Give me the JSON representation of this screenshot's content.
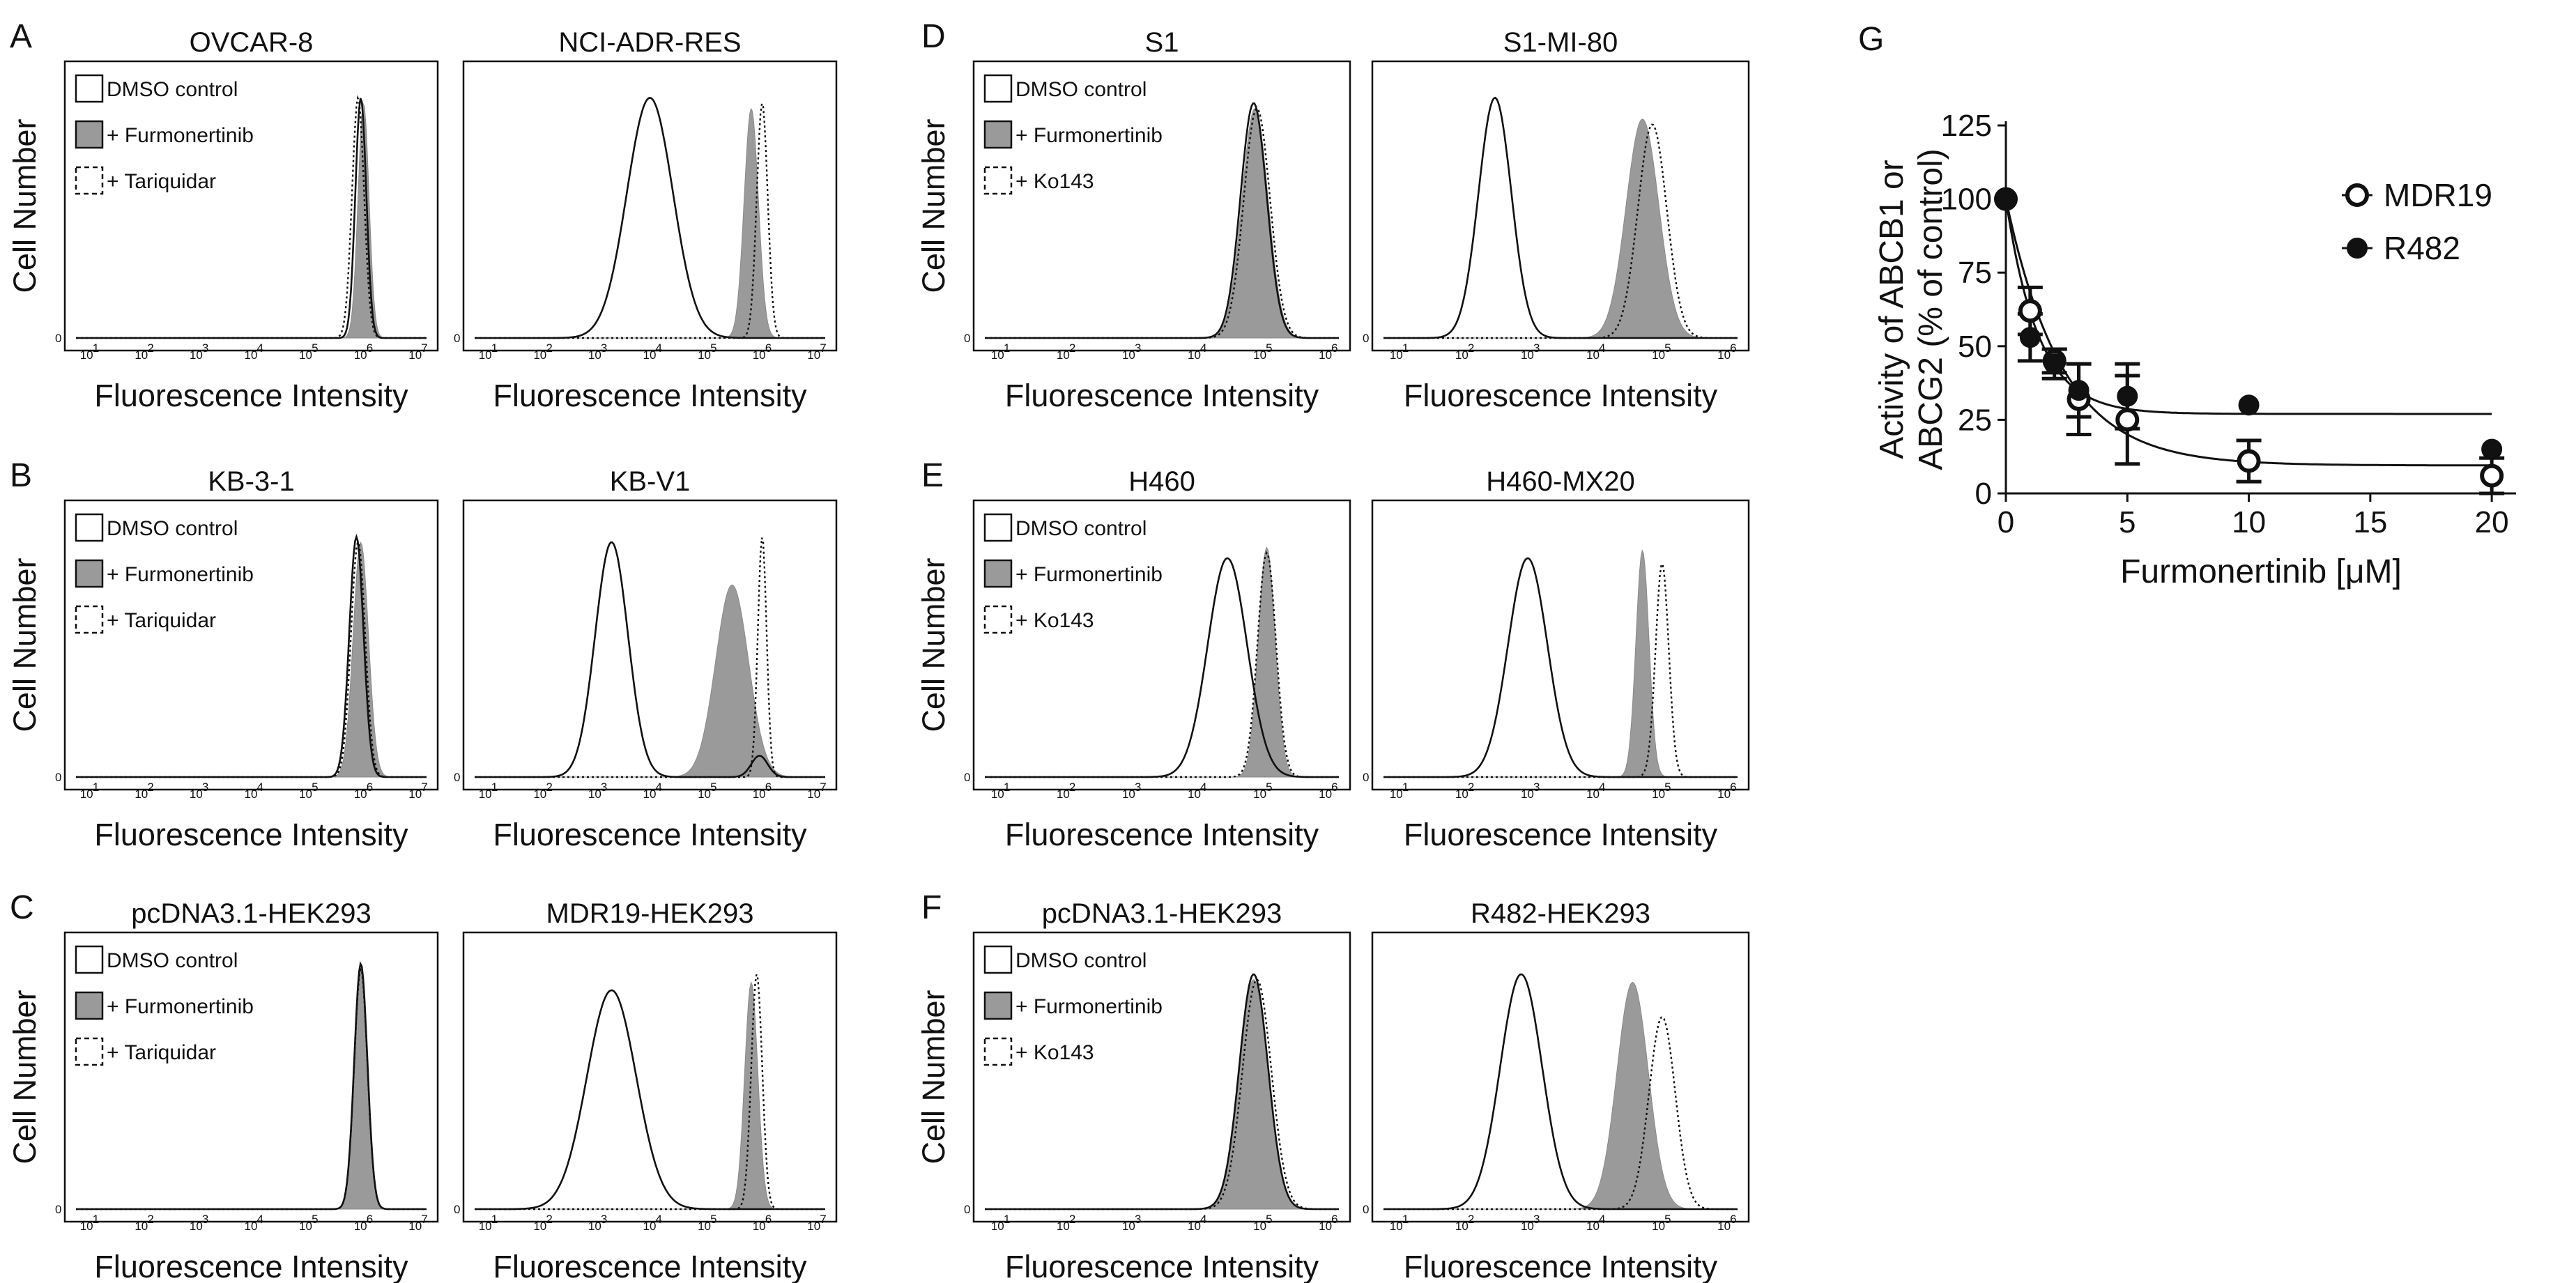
{
  "figure": {
    "letters": [
      "A",
      "B",
      "C",
      "D",
      "E",
      "F",
      "G"
    ]
  },
  "chart_data": [
    {
      "type": "line",
      "subtype": "histogram-overlay",
      "panel": "A",
      "titles": [
        "OVCAR-8",
        "NCI-ADR-RES"
      ],
      "xlabel": "Fluorescence Intensity",
      "ylabel": "Cell Number",
      "x_scale": "log10",
      "xlim": [
        0.8,
        7.2
      ],
      "x_tick_labels": [
        "10",
        "10",
        "10",
        "10",
        "10",
        "10",
        "10"
      ],
      "x_tick_exponents": [
        "1",
        "2",
        "3",
        "4",
        "5",
        "6",
        "7"
      ],
      "y_zero_label": "0",
      "legend": [
        "DMSO control",
        "+ Furmonertinib",
        "+ Tariquidar"
      ],
      "plots": [
        {
          "title": "OVCAR-8",
          "series": [
            {
              "name": "DMSO control",
              "style": "solid",
              "peaks": [
                {
                  "mu": 6.0,
                  "sigma": 0.1,
                  "h": 0.9
                }
              ]
            },
            {
              "name": "+ Furmonertinib",
              "style": "filled",
              "peaks": [
                {
                  "mu": 6.05,
                  "sigma": 0.1,
                  "h": 0.88
                }
              ]
            },
            {
              "name": "+ Tariquidar",
              "style": "dotted",
              "peaks": [
                {
                  "mu": 5.95,
                  "sigma": 0.11,
                  "h": 0.9
                }
              ]
            }
          ]
        },
        {
          "title": "NCI-ADR-RES",
          "series": [
            {
              "name": "DMSO control",
              "style": "solid",
              "peaks": [
                {
                  "mu": 4.0,
                  "sigma": 0.42,
                  "h": 0.9
                }
              ]
            },
            {
              "name": "+ Furmonertinib",
              "style": "filled",
              "peaks": [
                {
                  "mu": 5.85,
                  "sigma": 0.13,
                  "h": 0.86
                }
              ]
            },
            {
              "name": "+ Tariquidar",
              "style": "dotted",
              "peaks": [
                {
                  "mu": 6.05,
                  "sigma": 0.1,
                  "h": 0.88
                }
              ]
            }
          ]
        }
      ]
    },
    {
      "type": "line",
      "subtype": "histogram-overlay",
      "panel": "B",
      "titles": [
        "KB-3-1",
        "KB-V1"
      ],
      "xlabel": "Fluorescence Intensity",
      "ylabel": "Cell Number",
      "x_scale": "log10",
      "xlim": [
        0.8,
        7.2
      ],
      "x_tick_labels": [
        "10",
        "10",
        "10",
        "10",
        "10",
        "10",
        "10"
      ],
      "x_tick_exponents": [
        "1",
        "2",
        "3",
        "4",
        "5",
        "6",
        "7"
      ],
      "y_zero_label": "0",
      "legend": [
        "DMSO control",
        "+ Furmonertinib",
        "+ Tariquidar"
      ],
      "plots": [
        {
          "title": "KB-3-1",
          "series": [
            {
              "name": "DMSO control",
              "style": "solid",
              "peaks": [
                {
                  "mu": 5.92,
                  "sigma": 0.13,
                  "h": 0.9
                }
              ]
            },
            {
              "name": "+ Furmonertinib",
              "style": "filled",
              "peaks": [
                {
                  "mu": 6.0,
                  "sigma": 0.14,
                  "h": 0.88
                }
              ]
            },
            {
              "name": "+ Tariquidar",
              "style": "dotted",
              "peaks": [
                {
                  "mu": 5.95,
                  "sigma": 0.13,
                  "h": 0.88
                }
              ]
            }
          ]
        },
        {
          "title": "KB-V1",
          "series": [
            {
              "name": "DMSO control",
              "style": "solid",
              "peaks": [
                {
                  "mu": 3.3,
                  "sigma": 0.3,
                  "h": 0.88
                },
                {
                  "mu": 6.0,
                  "sigma": 0.15,
                  "h": 0.08
                }
              ]
            },
            {
              "name": "+ Furmonertinib",
              "style": "filled",
              "peaks": [
                {
                  "mu": 5.5,
                  "sigma": 0.3,
                  "h": 0.72
                }
              ]
            },
            {
              "name": "+ Tariquidar",
              "style": "dotted",
              "peaks": [
                {
                  "mu": 6.05,
                  "sigma": 0.08,
                  "h": 0.9
                }
              ]
            }
          ]
        }
      ]
    },
    {
      "type": "line",
      "subtype": "histogram-overlay",
      "panel": "C",
      "titles": [
        "pcDNA3.1-HEK293",
        "MDR19-HEK293"
      ],
      "xlabel": "Fluorescence Intensity",
      "ylabel": "Cell Number",
      "x_scale": "log10",
      "xlim": [
        0.8,
        7.2
      ],
      "x_tick_labels": [
        "10",
        "10",
        "10",
        "10",
        "10",
        "10",
        "10"
      ],
      "x_tick_exponents": [
        "1",
        "2",
        "3",
        "4",
        "5",
        "6",
        "7"
      ],
      "y_zero_label": "0",
      "legend": [
        "DMSO control",
        "+ Furmonertinib",
        "+ Tariquidar"
      ],
      "plots": [
        {
          "title": "pcDNA3.1-HEK293",
          "series": [
            {
              "name": "DMSO control",
              "style": "solid",
              "peaks": [
                {
                  "mu": 6.0,
                  "sigma": 0.12,
                  "h": 0.92
                }
              ]
            },
            {
              "name": "+ Furmonertinib",
              "style": "filled",
              "peaks": [
                {
                  "mu": 6.0,
                  "sigma": 0.12,
                  "h": 0.9
                }
              ]
            },
            {
              "name": "+ Tariquidar",
              "style": "dotted",
              "peaks": [
                {
                  "mu": 6.0,
                  "sigma": 0.12,
                  "h": 0.9
                }
              ]
            }
          ]
        },
        {
          "title": "MDR19-HEK293",
          "series": [
            {
              "name": "DMSO control",
              "style": "solid",
              "peaks": [
                {
                  "mu": 3.3,
                  "sigma": 0.45,
                  "h": 0.82
                }
              ]
            },
            {
              "name": "+ Furmonertinib",
              "style": "filled",
              "peaks": [
                {
                  "mu": 5.85,
                  "sigma": 0.12,
                  "h": 0.85
                }
              ]
            },
            {
              "name": "+ Tariquidar",
              "style": "dotted",
              "peaks": [
                {
                  "mu": 5.95,
                  "sigma": 0.1,
                  "h": 0.88
                }
              ]
            }
          ]
        }
      ]
    },
    {
      "type": "line",
      "subtype": "histogram-overlay",
      "panel": "D",
      "titles": [
        "S1",
        "S1-MI-80"
      ],
      "xlabel": "Fluorescence Intensity",
      "ylabel": "Cell Number",
      "x_scale": "log10",
      "xlim": [
        0.8,
        6.2
      ],
      "x_tick_labels": [
        "10",
        "10",
        "10",
        "10",
        "10",
        "10"
      ],
      "x_tick_exponents": [
        "1",
        "2",
        "3",
        "4",
        "5",
        "6"
      ],
      "y_zero_label": "0",
      "legend": [
        "DMSO control",
        "+ Furmonertinib",
        "+ Ko143"
      ],
      "plots": [
        {
          "title": "S1",
          "series": [
            {
              "name": "DMSO control",
              "style": "solid",
              "peaks": [
                {
                  "mu": 4.9,
                  "sigma": 0.2,
                  "h": 0.88
                }
              ]
            },
            {
              "name": "+ Furmonertinib",
              "style": "filled",
              "peaks": [
                {
                  "mu": 4.92,
                  "sigma": 0.2,
                  "h": 0.86
                }
              ]
            },
            {
              "name": "+ Ko143",
              "style": "dotted",
              "peaks": [
                {
                  "mu": 4.95,
                  "sigma": 0.2,
                  "h": 0.86
                }
              ]
            }
          ]
        },
        {
          "title": "S1-MI-80",
          "series": [
            {
              "name": "DMSO control",
              "style": "solid",
              "peaks": [
                {
                  "mu": 2.5,
                  "sigma": 0.25,
                  "h": 0.9
                }
              ]
            },
            {
              "name": "+ Furmonertinib",
              "style": "filled",
              "peaks": [
                {
                  "mu": 4.75,
                  "sigma": 0.25,
                  "h": 0.82
                }
              ]
            },
            {
              "name": "+ Ko143",
              "style": "dotted",
              "peaks": [
                {
                  "mu": 4.9,
                  "sigma": 0.22,
                  "h": 0.8
                }
              ]
            }
          ]
        }
      ]
    },
    {
      "type": "line",
      "subtype": "histogram-overlay",
      "panel": "E",
      "titles": [
        "H460",
        "H460-MX20"
      ],
      "xlabel": "Fluorescence Intensity",
      "ylabel": "Cell Number",
      "x_scale": "log10",
      "xlim": [
        0.8,
        6.2
      ],
      "x_tick_labels": [
        "10",
        "10",
        "10",
        "10",
        "10",
        "10"
      ],
      "x_tick_exponents": [
        "1",
        "2",
        "3",
        "4",
        "5",
        "6"
      ],
      "y_zero_label": "0",
      "legend": [
        "DMSO control",
        "+ Furmonertinib",
        "+ Ko143"
      ],
      "plots": [
        {
          "title": "H460",
          "series": [
            {
              "name": "DMSO control",
              "style": "solid",
              "peaks": [
                {
                  "mu": 4.5,
                  "sigma": 0.3,
                  "h": 0.82
                }
              ]
            },
            {
              "name": "+ Furmonertinib",
              "style": "filled",
              "peaks": [
                {
                  "mu": 5.1,
                  "sigma": 0.13,
                  "h": 0.86
                }
              ]
            },
            {
              "name": "+ Ko143",
              "style": "dotted",
              "peaks": [
                {
                  "mu": 5.1,
                  "sigma": 0.14,
                  "h": 0.84
                }
              ]
            }
          ]
        },
        {
          "title": "H460-MX20",
          "series": [
            {
              "name": "DMSO control",
              "style": "solid",
              "peaks": [
                {
                  "mu": 3.0,
                  "sigma": 0.3,
                  "h": 0.82
                }
              ]
            },
            {
              "name": "+ Furmonertinib",
              "style": "filled",
              "peaks": [
                {
                  "mu": 4.75,
                  "sigma": 0.1,
                  "h": 0.85
                }
              ]
            },
            {
              "name": "+ Ko143",
              "style": "dotted",
              "peaks": [
                {
                  "mu": 5.05,
                  "sigma": 0.1,
                  "h": 0.8
                }
              ]
            }
          ]
        }
      ]
    },
    {
      "type": "line",
      "subtype": "histogram-overlay",
      "panel": "F",
      "titles": [
        "pcDNA3.1-HEK293",
        "R482-HEK293"
      ],
      "xlabel": "Fluorescence Intensity",
      "ylabel": "Cell Number",
      "x_scale": "log10",
      "xlim": [
        0.8,
        6.2
      ],
      "x_tick_labels": [
        "10",
        "10",
        "10",
        "10",
        "10",
        "10"
      ],
      "x_tick_exponents": [
        "1",
        "2",
        "3",
        "4",
        "5",
        "6"
      ],
      "y_zero_label": "0",
      "legend": [
        "DMSO control",
        "+ Furmonertinib",
        "+ Ko143"
      ],
      "plots": [
        {
          "title": "pcDNA3.1-HEK293",
          "series": [
            {
              "name": "DMSO control",
              "style": "solid",
              "peaks": [
                {
                  "mu": 4.9,
                  "sigma": 0.22,
                  "h": 0.88
                }
              ]
            },
            {
              "name": "+ Furmonertinib",
              "style": "filled",
              "peaks": [
                {
                  "mu": 4.9,
                  "sigma": 0.22,
                  "h": 0.86
                }
              ]
            },
            {
              "name": "+ Ko143",
              "style": "dotted",
              "peaks": [
                {
                  "mu": 4.95,
                  "sigma": 0.22,
                  "h": 0.86
                }
              ]
            }
          ]
        },
        {
          "title": "R482-HEK293",
          "series": [
            {
              "name": "DMSO control",
              "style": "solid",
              "peaks": [
                {
                  "mu": 2.9,
                  "sigma": 0.32,
                  "h": 0.88
                }
              ]
            },
            {
              "name": "+ Furmonertinib",
              "style": "filled",
              "peaks": [
                {
                  "mu": 4.6,
                  "sigma": 0.24,
                  "h": 0.85
                }
              ]
            },
            {
              "name": "+ Ko143",
              "style": "dotted",
              "peaks": [
                {
                  "mu": 5.05,
                  "sigma": 0.2,
                  "h": 0.72
                }
              ]
            }
          ]
        }
      ]
    },
    {
      "type": "scatter",
      "subtype": "dose-response",
      "panel": "G",
      "title": "",
      "xlabel": "Furmonertinib [μM]",
      "ylabel": "Activity of ABCB1 or ABCG2 (% of control)",
      "ylabel_lines": [
        "Activity of ABCB1 or",
        "ABCG2 (% of control)"
      ],
      "xlim": [
        0,
        21
      ],
      "ylim": [
        0,
        125
      ],
      "x_ticks": [
        0,
        5,
        10,
        15,
        20
      ],
      "y_ticks": [
        0,
        25,
        50,
        75,
        100,
        125
      ],
      "legend": [
        "MDR19",
        "R482"
      ],
      "series": [
        {
          "name": "MDR19",
          "marker": "open-circle",
          "x": [
            0,
            1,
            2,
            3,
            5,
            10,
            20
          ],
          "y": [
            100,
            62,
            45,
            32,
            25,
            11,
            6
          ],
          "err": [
            0,
            8,
            4,
            12,
            15,
            7,
            6
          ],
          "fit": {
            "bottom": 9.5,
            "k": 0.43
          }
        },
        {
          "name": "R482",
          "marker": "filled-circle",
          "x": [
            0,
            1,
            2,
            3,
            5,
            10,
            20
          ],
          "y": [
            100,
            53,
            44,
            35,
            33,
            30,
            15
          ],
          "err": [
            0,
            8,
            5,
            9,
            11,
            0,
            0
          ],
          "fit": {
            "bottom": 27,
            "k": 0.75
          }
        }
      ]
    }
  ]
}
